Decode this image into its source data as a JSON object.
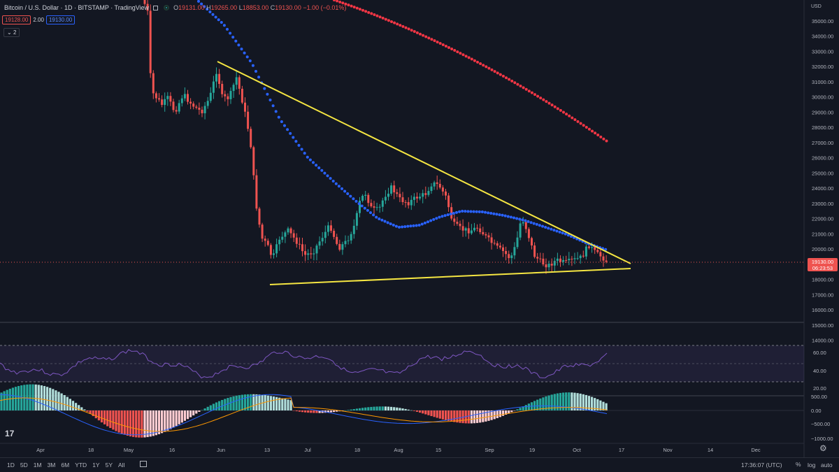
{
  "header": {
    "title": "Bitcoin / U.S. Dollar · 1D · BITSTAMP · TradingView",
    "ohlc": {
      "o": "19131.00",
      "h": "19265.00",
      "l": "18853.00",
      "c": "19130.00",
      "change": "−1.00 (−0.01%)"
    }
  },
  "indicators": {
    "badge_red": "19128.00",
    "mult": "2.00",
    "badge_blue": "19130.00",
    "collapse_count": "2"
  },
  "price_axis": {
    "currency": "USD",
    "labels": [
      "35000.00",
      "34000.00",
      "33000.00",
      "32000.00",
      "31000.00",
      "30000.00",
      "29000.00",
      "28000.00",
      "27000.00",
      "26000.00",
      "25000.00",
      "24000.00",
      "23000.00",
      "22000.00",
      "21000.00",
      "20000.00",
      "18000.00",
      "17000.00",
      "16000.00",
      "15000.00",
      "14000.00"
    ],
    "last_price": "19130.00",
    "countdown": "06:23:53"
  },
  "rsi_axis": {
    "labels": [
      "60.00",
      "40.00",
      "20.00"
    ]
  },
  "macd_axis": {
    "labels": [
      "500.00",
      "0.00",
      "−500.00",
      "−1000.00"
    ]
  },
  "time_axis": {
    "labels": [
      "Apr",
      "18",
      "May",
      "16",
      "Jun",
      "13",
      "Jul",
      "18",
      "Aug",
      "15",
      "Sep",
      "19",
      "Oct",
      "17",
      "Nov",
      "14",
      "Dec"
    ]
  },
  "bottom": {
    "ranges": [
      "1D",
      "5D",
      "1M",
      "3M",
      "6M",
      "YTD",
      "1Y",
      "5Y",
      "All"
    ],
    "clock": "17:36:07 (UTC)",
    "pct": "%",
    "log": "log",
    "auto": "auto"
  },
  "logo": "17",
  "colors": {
    "up": "#26a69a",
    "down": "#ef5350",
    "ma_fast": "#2962ff",
    "ma_slow": "#f23645",
    "trendline": "#f5e642",
    "rsi": "#7e57c2",
    "macd": "#2962ff",
    "signal": "#ff9800"
  }
}
